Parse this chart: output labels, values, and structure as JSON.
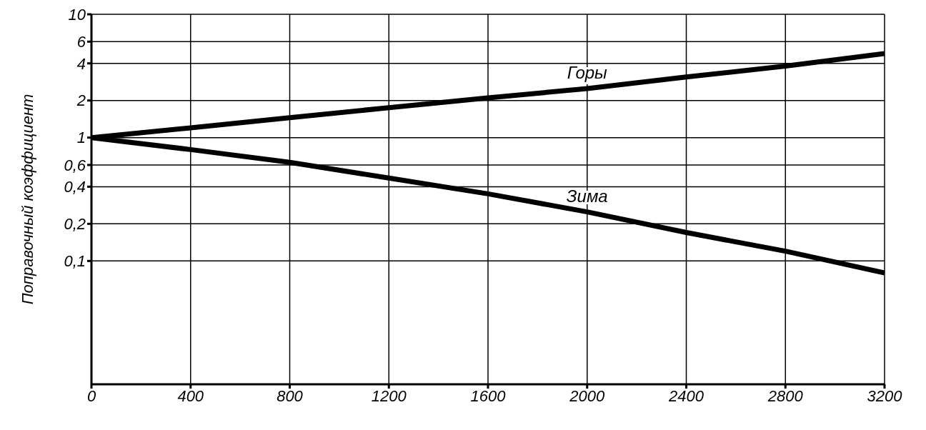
{
  "chart_data": {
    "type": "line",
    "ylabel": "Поправочный коэффициент",
    "x": [
      0,
      400,
      800,
      1200,
      1600,
      2000,
      2400,
      2800,
      3200
    ],
    "series": [
      {
        "name": "Горы",
        "color": "#000000",
        "values": [
          1,
          1.2,
          1.45,
          1.75,
          2.1,
          2.5,
          3.1,
          3.8,
          4.8
        ]
      },
      {
        "name": "Зима",
        "color": "#000000",
        "values": [
          1,
          0.8,
          0.63,
          0.47,
          0.35,
          0.25,
          0.17,
          0.12,
          0.08
        ]
      }
    ],
    "xlim": [
      0,
      3200
    ],
    "xticks": [
      0,
      400,
      800,
      1200,
      1600,
      2000,
      2400,
      2800,
      3200
    ],
    "ylim": [
      0.01,
      10
    ],
    "yticks": [
      {
        "value": 0.1,
        "label": "0,1"
      },
      {
        "value": 0.2,
        "label": "0,2"
      },
      {
        "value": 0.4,
        "label": "0,4"
      },
      {
        "value": 0.6,
        "label": "0,6"
      },
      1,
      2,
      4,
      6,
      10
    ],
    "log": "y",
    "grid": true,
    "legend": false,
    "marker": "none",
    "line_style": "solid"
  }
}
